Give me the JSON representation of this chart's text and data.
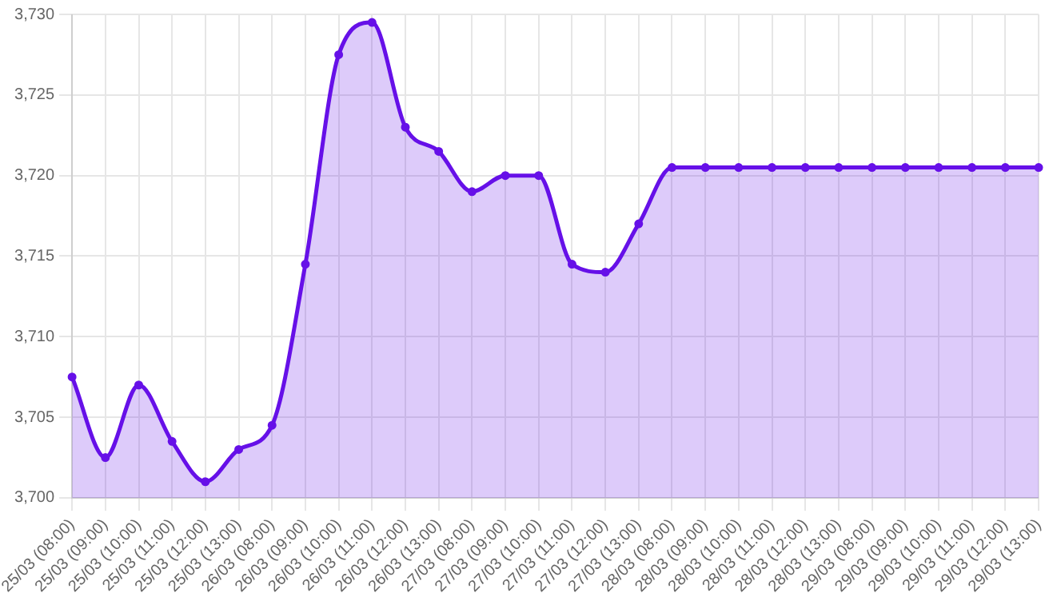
{
  "chart_data": {
    "type": "area",
    "categories": [
      "25/03 (08:00)",
      "25/03 (09:00)",
      "25/03 (10:00)",
      "25/03 (11:00)",
      "25/03 (12:00)",
      "25/03 (13:00)",
      "26/03 (08:00)",
      "26/03 (09:00)",
      "26/03 (10:00)",
      "26/03 (11:00)",
      "26/03 (12:00)",
      "26/03 (13:00)",
      "27/03 (08:00)",
      "27/03 (09:00)",
      "27/03 (10:00)",
      "27/03 (11:00)",
      "27/03 (12:00)",
      "27/03 (13:00)",
      "28/03 (08:00)",
      "28/03 (09:00)",
      "28/03 (10:00)",
      "28/03 (11:00)",
      "28/03 (12:00)",
      "28/03 (13:00)",
      "29/03 (08:00)",
      "29/03 (09:00)",
      "29/03 (10:00)",
      "29/03 (11:00)",
      "29/03 (12:00)",
      "29/03 (13:00)"
    ],
    "series": [
      {
        "color": "#6610e8",
        "values": [
          3707.5,
          3702.5,
          3707,
          3703.5,
          3701,
          3703,
          3704.5,
          3714.5,
          3727.5,
          3729.5,
          3723,
          3721.5,
          3719,
          3720,
          3720,
          3714.5,
          3714,
          3717,
          3720.5,
          3720.5,
          3720.5,
          3720.5,
          3720.5,
          3720.5,
          3720.5,
          3720.5,
          3720.5,
          3720.5,
          3720.5,
          3720.5
        ]
      }
    ],
    "ylim": [
      3700,
      3730
    ],
    "yticks": [
      {
        "value": 3700,
        "label": "3,700"
      },
      {
        "value": 3705,
        "label": "3,705"
      },
      {
        "value": 3710,
        "label": "3,710"
      },
      {
        "value": 3715,
        "label": "3,715"
      },
      {
        "value": 3720,
        "label": "3,720"
      },
      {
        "value": 3725,
        "label": "3,725"
      },
      {
        "value": 3730,
        "label": "3,730"
      }
    ],
    "grid": true,
    "legend": false,
    "marker": "circle",
    "line_style": "solid"
  }
}
